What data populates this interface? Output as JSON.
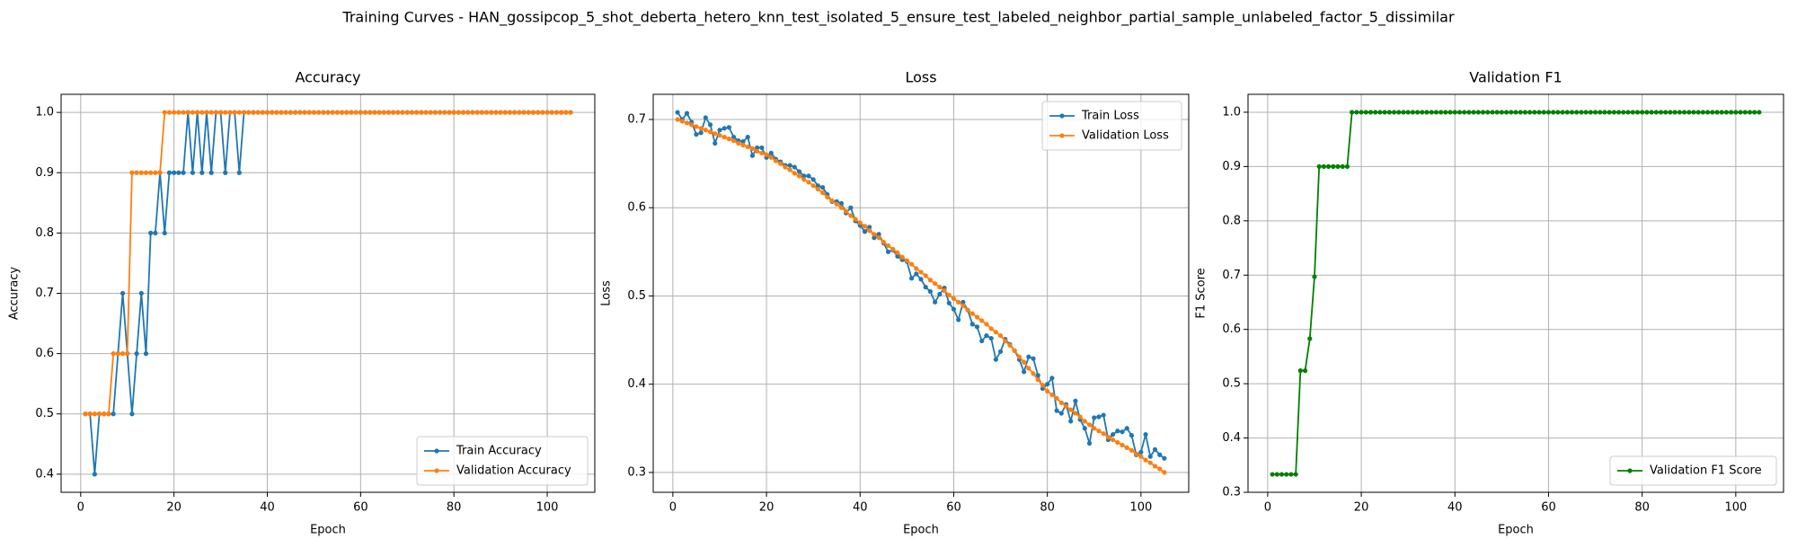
{
  "title": "Training Curves - HAN_gossipcop_5_shot_deberta_hetero_knn_test_isolated_5_ensure_test_labeled_neighbor_partial_sample_unlabeled_factor_5_dissimilar",
  "chart_data": [
    {
      "type": "line",
      "title": "Accuracy",
      "xlabel": "Epoch",
      "ylabel": "Accuracy",
      "x": [
        1,
        2,
        3,
        4,
        5,
        6,
        7,
        8,
        9,
        10,
        11,
        12,
        13,
        14,
        15,
        16,
        17,
        18,
        19,
        20,
        21,
        22,
        23,
        24,
        25,
        26,
        27,
        28,
        29,
        30,
        31,
        32,
        33,
        34,
        35,
        36,
        37,
        38,
        39,
        40,
        41,
        42,
        43,
        44,
        45,
        46,
        47,
        48,
        49,
        50,
        51,
        52,
        53,
        54,
        55,
        56,
        57,
        58,
        59,
        60,
        61,
        62,
        63,
        64,
        65,
        66,
        67,
        68,
        69,
        70,
        71,
        72,
        73,
        74,
        75,
        76,
        77,
        78,
        79,
        80,
        81,
        82,
        83,
        84,
        85,
        86,
        87,
        88,
        89,
        90,
        91,
        92,
        93,
        94,
        95,
        96,
        97,
        98,
        99,
        100,
        101,
        102,
        103,
        104,
        105
      ],
      "series": [
        {
          "name": "Train Accuracy",
          "color": "#1f77b4",
          "values": [
            0.5,
            0.5,
            0.4,
            0.5,
            0.5,
            0.5,
            0.5,
            0.6,
            0.7,
            0.6,
            0.5,
            0.6,
            0.7,
            0.6,
            0.8,
            0.8,
            0.9,
            0.8,
            0.9,
            0.9,
            0.9,
            0.9,
            1.0,
            0.9,
            1.0,
            0.9,
            1.0,
            0.9,
            1.0,
            1.0,
            0.9,
            1.0,
            1.0,
            0.9,
            1.0,
            1.0,
            1.0,
            1.0,
            1.0,
            1.0,
            1.0,
            1.0,
            1.0,
            1.0,
            1.0,
            1.0,
            1.0,
            1.0,
            1.0,
            1.0,
            1.0,
            1.0,
            1.0,
            1.0,
            1.0,
            1.0,
            1.0,
            1.0,
            1.0,
            1.0,
            1.0,
            1.0,
            1.0,
            1.0,
            1.0,
            1.0,
            1.0,
            1.0,
            1.0,
            1.0,
            1.0,
            1.0,
            1.0,
            1.0,
            1.0,
            1.0,
            1.0,
            1.0,
            1.0,
            1.0,
            1.0,
            1.0,
            1.0,
            1.0,
            1.0,
            1.0,
            1.0,
            1.0,
            1.0,
            1.0,
            1.0,
            1.0,
            1.0,
            1.0,
            1.0,
            1.0,
            1.0,
            1.0,
            1.0,
            1.0,
            1.0,
            1.0,
            1.0,
            1.0,
            1.0
          ]
        },
        {
          "name": "Validation Accuracy",
          "color": "#ff7f0e",
          "values": [
            0.5,
            0.5,
            0.5,
            0.5,
            0.5,
            0.5,
            0.6,
            0.6,
            0.6,
            0.6,
            0.9,
            0.9,
            0.9,
            0.9,
            0.9,
            0.9,
            0.9,
            1.0,
            1.0,
            1.0,
            1.0,
            1.0,
            1.0,
            1.0,
            1.0,
            1.0,
            1.0,
            1.0,
            1.0,
            1.0,
            1.0,
            1.0,
            1.0,
            1.0,
            1.0,
            1.0,
            1.0,
            1.0,
            1.0,
            1.0,
            1.0,
            1.0,
            1.0,
            1.0,
            1.0,
            1.0,
            1.0,
            1.0,
            1.0,
            1.0,
            1.0,
            1.0,
            1.0,
            1.0,
            1.0,
            1.0,
            1.0,
            1.0,
            1.0,
            1.0,
            1.0,
            1.0,
            1.0,
            1.0,
            1.0,
            1.0,
            1.0,
            1.0,
            1.0,
            1.0,
            1.0,
            1.0,
            1.0,
            1.0,
            1.0,
            1.0,
            1.0,
            1.0,
            1.0,
            1.0,
            1.0,
            1.0,
            1.0,
            1.0,
            1.0,
            1.0,
            1.0,
            1.0,
            1.0,
            1.0,
            1.0,
            1.0,
            1.0,
            1.0,
            1.0,
            1.0,
            1.0,
            1.0,
            1.0,
            1.0,
            1.0,
            1.0,
            1.0,
            1.0,
            1.0
          ]
        }
      ],
      "xlim": [
        -4.2,
        110.2
      ],
      "xticks": [
        0,
        20,
        40,
        60,
        80,
        100
      ],
      "ylim": [
        0.37,
        1.03
      ],
      "yticks": [
        0.4,
        0.5,
        0.6,
        0.7,
        0.8,
        0.9,
        {
          "value": 1,
          "label": "1.0"
        }
      ],
      "grid": true,
      "legend": "lower right"
    },
    {
      "type": "line",
      "title": "Loss",
      "xlabel": "Epoch",
      "ylabel": "Loss",
      "x": [
        1,
        2,
        3,
        4,
        5,
        6,
        7,
        8,
        9,
        10,
        11,
        12,
        13,
        14,
        15,
        16,
        17,
        18,
        19,
        20,
        21,
        22,
        23,
        24,
        25,
        26,
        27,
        28,
        29,
        30,
        31,
        32,
        33,
        34,
        35,
        36,
        37,
        38,
        39,
        40,
        41,
        42,
        43,
        44,
        45,
        46,
        47,
        48,
        49,
        50,
        51,
        52,
        53,
        54,
        55,
        56,
        57,
        58,
        59,
        60,
        61,
        62,
        63,
        64,
        65,
        66,
        67,
        68,
        69,
        70,
        71,
        72,
        73,
        74,
        75,
        76,
        77,
        78,
        79,
        80,
        81,
        82,
        83,
        84,
        85,
        86,
        87,
        88,
        89,
        90,
        91,
        92,
        93,
        94,
        95,
        96,
        97,
        98,
        99,
        100,
        101,
        102,
        103,
        104,
        105
      ],
      "series": [
        {
          "name": "Train Loss",
          "color": "#1f77b4",
          "values": [
            0.708,
            0.7,
            0.707,
            0.697,
            0.683,
            0.685,
            0.702,
            0.694,
            0.673,
            0.688,
            0.69,
            0.691,
            0.68,
            0.676,
            0.675,
            0.68,
            0.659,
            0.668,
            0.668,
            0.657,
            0.662,
            0.655,
            0.652,
            0.648,
            0.648,
            0.646,
            0.641,
            0.636,
            0.636,
            0.632,
            0.625,
            0.623,
            0.615,
            0.607,
            0.607,
            0.605,
            0.594,
            0.6,
            0.585,
            0.58,
            0.573,
            0.578,
            0.566,
            0.57,
            0.56,
            0.55,
            0.552,
            0.545,
            0.541,
            0.539,
            0.52,
            0.525,
            0.519,
            0.51,
            0.505,
            0.493,
            0.502,
            0.509,
            0.492,
            0.485,
            0.473,
            0.493,
            0.484,
            0.468,
            0.465,
            0.449,
            0.455,
            0.452,
            0.428,
            0.437,
            0.451,
            0.445,
            0.438,
            0.428,
            0.414,
            0.431,
            0.429,
            0.41,
            0.395,
            0.4,
            0.407,
            0.37,
            0.367,
            0.377,
            0.358,
            0.381,
            0.36,
            0.35,
            0.333,
            0.362,
            0.363,
            0.365,
            0.337,
            0.343,
            0.347,
            0.346,
            0.35,
            0.342,
            0.32,
            0.323,
            0.343,
            0.318,
            0.326,
            0.32,
            0.316
          ]
        },
        {
          "name": "Validation Loss",
          "color": "#ff7f0e",
          "values": [
            0.7,
            0.698,
            0.696,
            0.694,
            0.692,
            0.69,
            0.688,
            0.686,
            0.684,
            0.682,
            0.68,
            0.678,
            0.676,
            0.673,
            0.671,
            0.669,
            0.667,
            0.664,
            0.662,
            0.66,
            0.657,
            0.653,
            0.65,
            0.646,
            0.643,
            0.639,
            0.636,
            0.632,
            0.629,
            0.625,
            0.621,
            0.617,
            0.612,
            0.608,
            0.604,
            0.6,
            0.596,
            0.591,
            0.587,
            0.583,
            0.579,
            0.574,
            0.57,
            0.566,
            0.561,
            0.557,
            0.553,
            0.549,
            0.544,
            0.54,
            0.536,
            0.531,
            0.527,
            0.523,
            0.518,
            0.514,
            0.51,
            0.506,
            0.501,
            0.497,
            0.493,
            0.489,
            0.484,
            0.48,
            0.476,
            0.472,
            0.468,
            0.463,
            0.459,
            0.455,
            0.449,
            0.444,
            0.438,
            0.431,
            0.425,
            0.418,
            0.412,
            0.405,
            0.399,
            0.392,
            0.388,
            0.384,
            0.379,
            0.375,
            0.371,
            0.367,
            0.363,
            0.358,
            0.354,
            0.35,
            0.347,
            0.344,
            0.34,
            0.337,
            0.334,
            0.331,
            0.328,
            0.325,
            0.321,
            0.318,
            0.314,
            0.311,
            0.307,
            0.304,
            0.3
          ]
        }
      ],
      "xlim": [
        -4.2,
        110.2
      ],
      "xticks": [
        0,
        20,
        40,
        60,
        80,
        100
      ],
      "ylim": [
        0.2775,
        0.7285
      ],
      "yticks": [
        0.3,
        0.4,
        0.5,
        0.6,
        0.7
      ],
      "grid": true,
      "legend": "upper right"
    },
    {
      "type": "line",
      "title": "Validation F1",
      "xlabel": "Epoch",
      "ylabel": "F1 Score",
      "x": [
        1,
        2,
        3,
        4,
        5,
        6,
        7,
        8,
        9,
        10,
        11,
        12,
        13,
        14,
        15,
        16,
        17,
        18,
        19,
        20,
        21,
        22,
        23,
        24,
        25,
        26,
        27,
        28,
        29,
        30,
        31,
        32,
        33,
        34,
        35,
        36,
        37,
        38,
        39,
        40,
        41,
        42,
        43,
        44,
        45,
        46,
        47,
        48,
        49,
        50,
        51,
        52,
        53,
        54,
        55,
        56,
        57,
        58,
        59,
        60,
        61,
        62,
        63,
        64,
        65,
        66,
        67,
        68,
        69,
        70,
        71,
        72,
        73,
        74,
        75,
        76,
        77,
        78,
        79,
        80,
        81,
        82,
        83,
        84,
        85,
        86,
        87,
        88,
        89,
        90,
        91,
        92,
        93,
        94,
        95,
        96,
        97,
        98,
        99,
        100,
        101,
        102,
        103,
        104,
        105
      ],
      "series": [
        {
          "name": "Validation F1 Score",
          "color": "#008000",
          "values": [
            0.333,
            0.333,
            0.333,
            0.333,
            0.333,
            0.333,
            0.524,
            0.524,
            0.583,
            0.697,
            0.9,
            0.9,
            0.9,
            0.9,
            0.9,
            0.9,
            0.9,
            1.0,
            1.0,
            1.0,
            1.0,
            1.0,
            1.0,
            1.0,
            1.0,
            1.0,
            1.0,
            1.0,
            1.0,
            1.0,
            1.0,
            1.0,
            1.0,
            1.0,
            1.0,
            1.0,
            1.0,
            1.0,
            1.0,
            1.0,
            1.0,
            1.0,
            1.0,
            1.0,
            1.0,
            1.0,
            1.0,
            1.0,
            1.0,
            1.0,
            1.0,
            1.0,
            1.0,
            1.0,
            1.0,
            1.0,
            1.0,
            1.0,
            1.0,
            1.0,
            1.0,
            1.0,
            1.0,
            1.0,
            1.0,
            1.0,
            1.0,
            1.0,
            1.0,
            1.0,
            1.0,
            1.0,
            1.0,
            1.0,
            1.0,
            1.0,
            1.0,
            1.0,
            1.0,
            1.0,
            1.0,
            1.0,
            1.0,
            1.0,
            1.0,
            1.0,
            1.0,
            1.0,
            1.0,
            1.0,
            1.0,
            1.0,
            1.0,
            1.0,
            1.0,
            1.0,
            1.0,
            1.0,
            1.0,
            1.0,
            1.0,
            1.0,
            1.0,
            1.0,
            1.0
          ]
        }
      ],
      "xlim": [
        -4.2,
        110.2
      ],
      "xticks": [
        0,
        20,
        40,
        60,
        80,
        100
      ],
      "ylim": [
        0.3,
        1.033
      ],
      "yticks": [
        0.3,
        0.4,
        0.5,
        0.6,
        0.7,
        0.8,
        0.9,
        {
          "value": 1,
          "label": "1.0"
        }
      ],
      "grid": true,
      "legend": "lower right"
    }
  ]
}
